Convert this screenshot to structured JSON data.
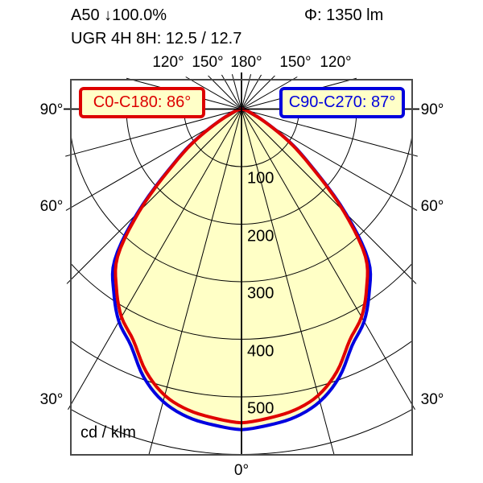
{
  "header": {
    "fixture_line": "A50 ↓100.0%",
    "flux_line": "Φ: 1350 lm",
    "ugr_line": "UGR 4H 8H: 12.5 / 12.7"
  },
  "legend": {
    "c0_label": "C0-C180: 86°",
    "c90_label": "C90-C270: 87°"
  },
  "chart_data": {
    "type": "polar",
    "subtype": "luminous-intensity-distribution",
    "unit": "cd / klm",
    "angles_deg": [
      0,
      5,
      10,
      15,
      20,
      25,
      30,
      35,
      40,
      45,
      50,
      55,
      60,
      65,
      70,
      75,
      80,
      85,
      90
    ],
    "series": [
      {
        "name": "C0-C180",
        "beam_angle_deg": 86,
        "color": "#e00000",
        "values": [
          545,
          539,
          531,
          515,
          485,
          444,
          417,
          379,
          335,
          251,
          164,
          106,
          55,
          27,
          14,
          7,
          3,
          1,
          0
        ]
      },
      {
        "name": "C90-C270",
        "beam_angle_deg": 87,
        "color": "#0000e0",
        "values": [
          557,
          551,
          543,
          526,
          496,
          454,
          426,
          387,
          343,
          256,
          167,
          109,
          56,
          28,
          14,
          7,
          3,
          1,
          0
        ]
      }
    ],
    "fill_color": "#ffffc6",
    "radial_ticks": [
      100,
      200,
      300,
      400,
      500
    ],
    "radial_tick_labels": [
      "100",
      "200",
      "300",
      "400",
      "500"
    ],
    "radial_grid_max": 600,
    "angle_grid_step_deg": 15,
    "top_angle_labels": [
      "120°",
      "150°",
      "180°",
      "150°",
      "120°"
    ],
    "left_angle_labels": [
      "90°",
      "60°",
      "30°"
    ],
    "right_angle_labels": [
      "90°",
      "60°",
      "30°"
    ],
    "bottom_angle_label": "0°"
  }
}
